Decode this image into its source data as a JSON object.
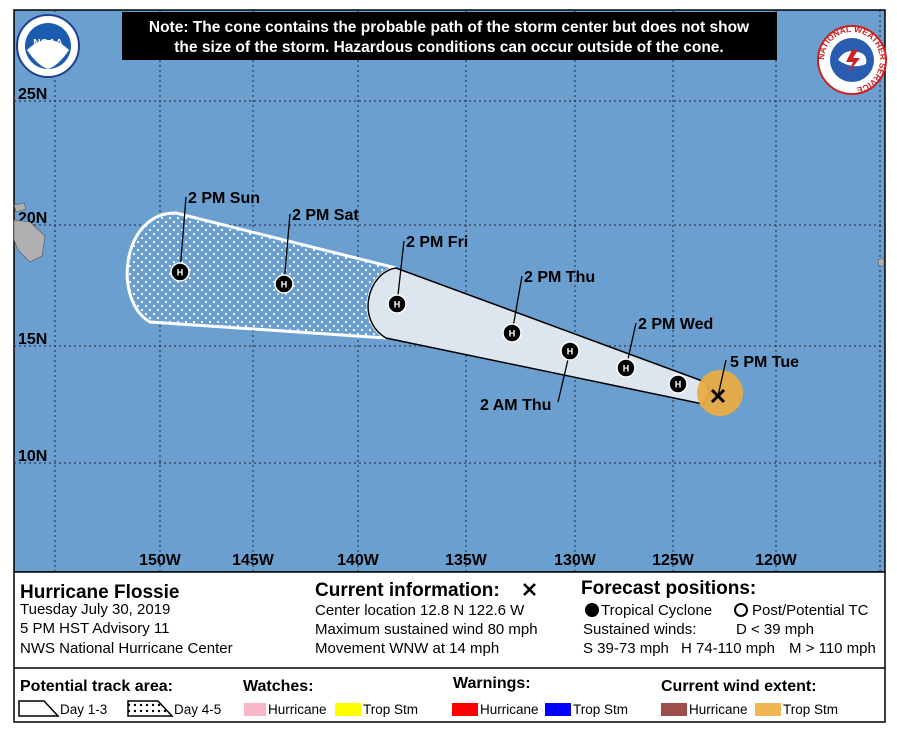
{
  "note": [
    "Note: The cone contains the probable path of the storm center but does not show",
    "the size of the storm. Hazardous conditions can occur outside of the cone."
  ],
  "logos": {
    "noaa": "NOAA",
    "nws": "NATIONAL WEATHER SERVICE"
  },
  "map": {
    "lat_labels": [
      "25N",
      "20N",
      "15N",
      "10N"
    ],
    "lon_labels": [
      "150W",
      "145W",
      "140W",
      "135W",
      "130W",
      "125W",
      "120W"
    ],
    "marker": "H",
    "track": [
      {
        "label": "5 PM Tue"
      },
      {
        "label": null
      },
      {
        "label": "2 PM Wed"
      },
      {
        "label": "2 AM Thu"
      },
      {
        "label": "2 PM Thu"
      },
      {
        "label": "2 PM Fri"
      },
      {
        "label": "2 PM Sat"
      },
      {
        "label": "2 PM Sun"
      }
    ]
  },
  "storm": {
    "name": "Hurricane Flossie",
    "date": "Tuesday July 30, 2019",
    "advisory": "5 PM HST Advisory 11",
    "center": "NWS National Hurricane Center"
  },
  "current": {
    "title": "Current information:",
    "lines": [
      "Center location 12.8 N 122.6 W",
      "Maximum sustained wind 80 mph",
      "Movement WNW at 14 mph"
    ]
  },
  "forecast": {
    "title": "Forecast positions:",
    "tropical": "Tropical Cyclone",
    "post": "Post/Potential TC",
    "winds_title": "Sustained winds:",
    "d": "D < 39 mph",
    "s": "S 39-73 mph",
    "h": "H 74-110 mph",
    "m": "M > 110 mph"
  },
  "legend": {
    "track_title": "Potential track area:",
    "day13": "Day 1-3",
    "day45": "Day 4-5",
    "watches": {
      "title": "Watches:",
      "hurricane": "Hurricane",
      "trop": "Trop Stm"
    },
    "warnings": {
      "title": "Warnings:",
      "hurricane": "Hurricane",
      "trop": "Trop Stm"
    },
    "wind": {
      "title": "Current wind extent:",
      "hurricane": "Hurricane",
      "trop": "Trop Stm"
    }
  }
}
